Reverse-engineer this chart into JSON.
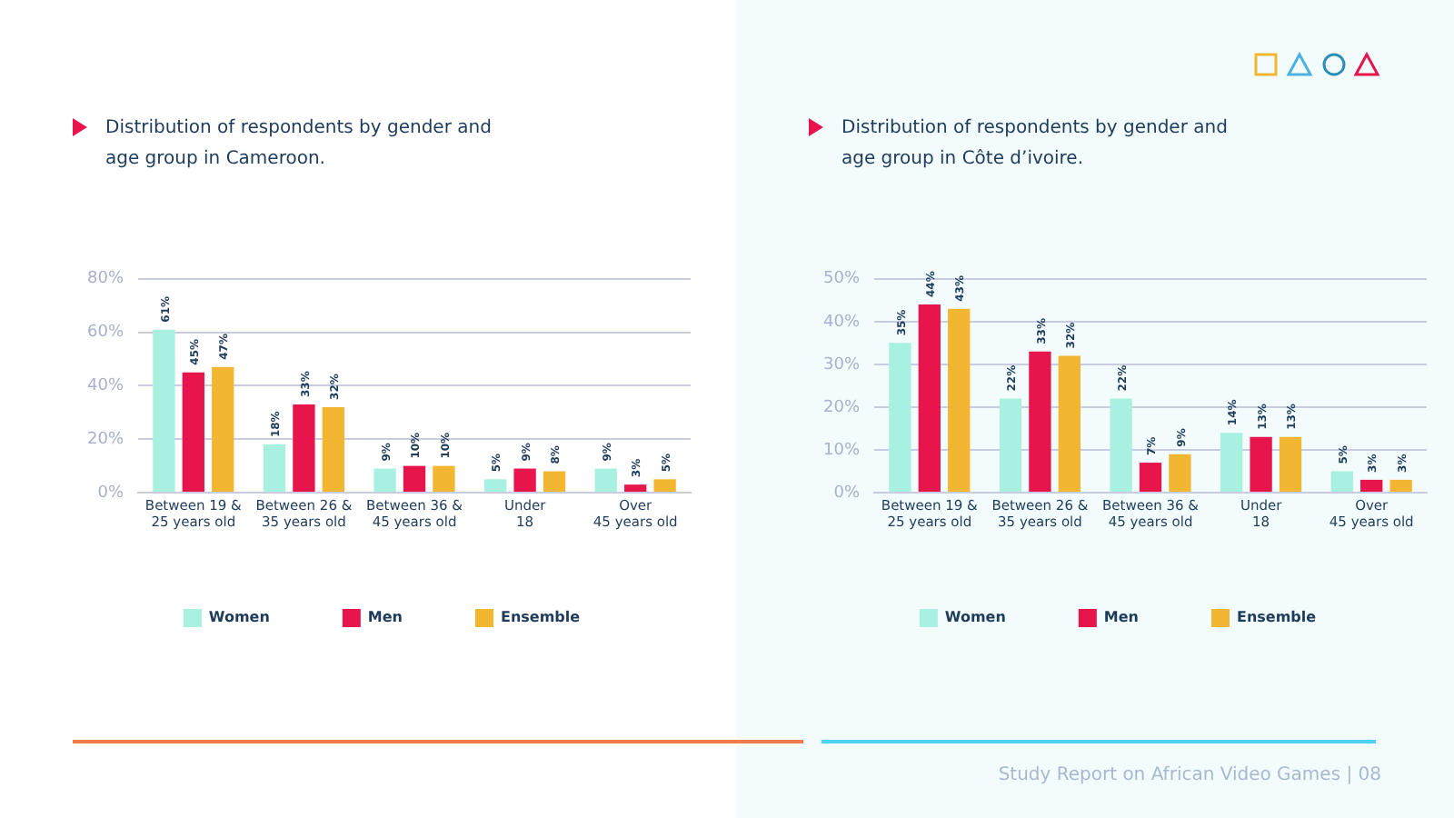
{
  "chart_data": [
    {
      "type": "bar",
      "title": "Distribution of respondents by gender and age group in Cameroon.",
      "categories": [
        "Between 19 & 25 years old",
        "Between 26 & 35 years old",
        "Between 36 & 45 years old",
        "Under 18",
        "Over 45 years old"
      ],
      "series": [
        {
          "name": "Women",
          "color": "#a8f0df",
          "values": [
            61,
            18,
            9,
            5,
            9
          ],
          "value_labels": [
            "61%",
            "18%",
            "9%",
            "5%",
            "9%"
          ]
        },
        {
          "name": "Men",
          "color": "#e8154d",
          "values": [
            45,
            33,
            10,
            9,
            3
          ],
          "value_labels": [
            "45%",
            "33%",
            "10%",
            "9%",
            "3%"
          ]
        },
        {
          "name": "Ensemble",
          "color": "#f2b631",
          "values": [
            47,
            32,
            10,
            8,
            5
          ],
          "value_labels": [
            "47%",
            "32%",
            "10%",
            "8%",
            "5%"
          ]
        }
      ],
      "ylim": [
        0,
        80
      ],
      "yticks": [
        {
          "value": 0,
          "label": "0%"
        },
        {
          "value": 20,
          "label": "20%"
        },
        {
          "value": 40,
          "label": "40%"
        },
        {
          "value": 60,
          "label": "60%"
        },
        {
          "value": 80,
          "label": "80%"
        }
      ],
      "grid": "y",
      "legend": "bottom"
    },
    {
      "type": "bar",
      "title": "Distribution of respondents by gender and age group in Côte d’ivoire.",
      "categories": [
        "Between 19 & 25 years old",
        "Between 26 & 35 years old",
        "Between 36 & 45 years old",
        "Under 18",
        "Over 45 years old"
      ],
      "series": [
        {
          "name": "Women",
          "color": "#a8f0df",
          "values": [
            35,
            22,
            22,
            14,
            5
          ],
          "value_labels": [
            "35%",
            "22%",
            "22%",
            "14%",
            "5%"
          ]
        },
        {
          "name": "Men",
          "color": "#e8154d",
          "values": [
            44,
            33,
            7,
            13,
            3
          ],
          "value_labels": [
            "44%",
            "33%",
            "7%",
            "13%",
            "3%"
          ]
        },
        {
          "name": "Ensemble",
          "color": "#f2b631",
          "values": [
            43,
            32,
            9,
            13,
            3
          ],
          "value_labels": [
            "43%",
            "32%",
            "9%",
            "13%",
            "3%"
          ]
        }
      ],
      "ylim": [
        0,
        50
      ],
      "yticks": [
        {
          "value": 0,
          "label": "0%"
        },
        {
          "value": 10,
          "label": "10%"
        },
        {
          "value": 20,
          "label": "20%"
        },
        {
          "value": 30,
          "label": "30%"
        },
        {
          "value": 40,
          "label": "40%"
        },
        {
          "value": 50,
          "label": "50%"
        }
      ],
      "grid": "y",
      "legend": "bottom",
      "annotations": [
        "Study Report on African Video Games | 08"
      ]
    }
  ]
}
